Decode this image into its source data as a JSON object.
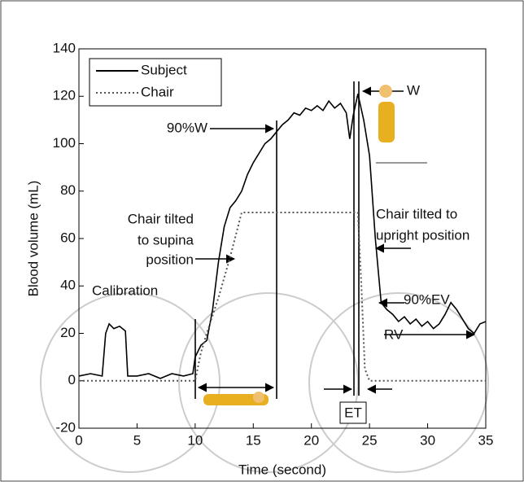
{
  "chart_data": {
    "type": "line",
    "xlabel": "Time (second)",
    "ylabel": "Blood volume (mL)",
    "xlim": [
      0,
      35
    ],
    "xticks": [
      0,
      5,
      10,
      15,
      20,
      25,
      30,
      35
    ],
    "ylim": [
      -20,
      140
    ],
    "yticks": [
      -20,
      0,
      20,
      40,
      60,
      80,
      100,
      120,
      140
    ],
    "series": [
      {
        "name": "Subject",
        "color": "#000000",
        "style": "solid",
        "x": [
          0,
          1,
          2,
          2.3,
          2.6,
          3,
          3.5,
          4,
          4.2,
          5,
          6,
          7,
          8,
          9,
          9.8,
          10,
          10.5,
          11,
          11.5,
          12,
          12.5,
          13,
          13.5,
          14,
          14.5,
          15,
          15.5,
          16,
          16.5,
          17,
          17.5,
          18,
          18.5,
          19,
          19.5,
          20,
          20.5,
          21,
          21.5,
          22,
          22.5,
          23,
          23.3,
          23.6,
          24,
          24.5,
          25,
          25.5,
          26,
          26.5,
          27,
          27.5,
          28,
          28.5,
          29,
          29.5,
          30,
          30.5,
          31,
          31.5,
          32,
          32.5,
          33,
          33.5,
          34,
          34.5,
          35
        ],
        "values": [
          2,
          3,
          2,
          20,
          24,
          22,
          23,
          21,
          2,
          2,
          3,
          1,
          3,
          2,
          3,
          10,
          15,
          17,
          30,
          50,
          65,
          73,
          76,
          80,
          87,
          92,
          96,
          100,
          102,
          105,
          108,
          110,
          113,
          112,
          115,
          114,
          116,
          114,
          118,
          115,
          117,
          113,
          102,
          112,
          121,
          110,
          95,
          60,
          33,
          30,
          28,
          25,
          27,
          24,
          26,
          23,
          25,
          22,
          24,
          28,
          33,
          30,
          26,
          22,
          20,
          24,
          25
        ]
      },
      {
        "name": "Chair",
        "color": "#555555",
        "style": "dotted",
        "x": [
          0,
          10,
          10.5,
          11,
          12,
          13,
          14,
          15,
          20,
          24,
          24.3,
          24.6,
          25,
          30,
          35
        ],
        "values": [
          0,
          0,
          12,
          20,
          35,
          52,
          71,
          71,
          71,
          71,
          40,
          5,
          0,
          0,
          0
        ]
      }
    ],
    "annotations": [
      "Calibration",
      "Chair tilted",
      "to supina",
      "position",
      "90%W",
      "W",
      "Chair tilted to",
      "upright position",
      "90%EV",
      "RV",
      "ET"
    ]
  }
}
